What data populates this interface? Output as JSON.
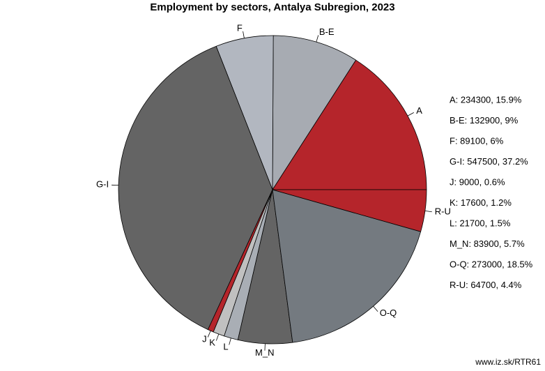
{
  "chart_data": {
    "type": "pie",
    "title": "Employment by sectors, Antalya Subregion, 2023",
    "categories": [
      "A",
      "B-E",
      "F",
      "G-I",
      "J",
      "K",
      "L",
      "M_N",
      "O-Q",
      "R-U"
    ],
    "values": [
      234300,
      132900,
      89100,
      547500,
      9000,
      17600,
      21700,
      83900,
      273000,
      64700
    ],
    "value_labels": [
      "A: 234300, 15.9%",
      "B-E: 132900, 9%",
      "F: 89100, 6%",
      "G-I: 547500, 37.2%",
      "J: 9000, 0.6%",
      "K: 17600, 1.2%",
      "L: 21700, 1.5%",
      "M_N: 83900, 5.7%",
      "O-Q: 273000, 18.5%",
      "R-U: 64700, 4.4%"
    ],
    "colors": [
      "#b5252b",
      "#a7abb2",
      "#b2b7c0",
      "#646464",
      "#b5252b",
      "#c0c0c0",
      "#a9aeb5",
      "#646464",
      "#747a80",
      "#b5252b"
    ],
    "source": "www.iz.sk/RTR61"
  }
}
